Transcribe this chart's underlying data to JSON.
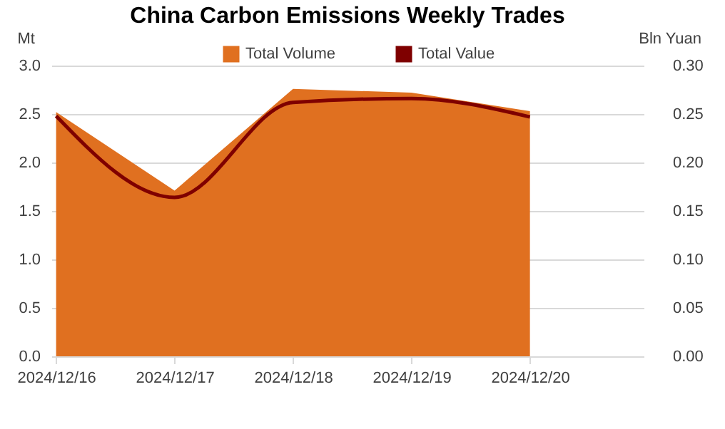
{
  "chart_data": {
    "type": "area",
    "title": "China Carbon Emissions Weekly Trades",
    "ylabel": "Mt",
    "y2label": "Bln Yuan",
    "categories": [
      "2024/12/16",
      "2024/12/17",
      "2024/12/18",
      "2024/12/19",
      "2024/12/20"
    ],
    "series": [
      {
        "name": "Total Volume",
        "color": "#e07020",
        "values": [
          2.52,
          1.71,
          2.76,
          2.72,
          2.53
        ]
      },
      {
        "name": "Total Value",
        "type": "line",
        "axis": "y2",
        "color": "#7f0000",
        "values": [
          0.248,
          0.164,
          0.262,
          0.266,
          0.247
        ]
      }
    ],
    "ylim": [
      0,
      3
    ],
    "yticks": [
      {
        "value": 0,
        "label": "0.0"
      },
      {
        "value": 0.5,
        "label": "0.5"
      },
      {
        "value": 1,
        "label": "1.0"
      },
      {
        "value": 1.5,
        "label": "1.5"
      },
      {
        "value": 2,
        "label": "2.0"
      },
      {
        "value": 2.5,
        "label": "2.5"
      },
      {
        "value": 3,
        "label": "3.0"
      }
    ],
    "y2lim": [
      0,
      0.3
    ],
    "y2ticks": [
      {
        "value": 0,
        "label": "0.00"
      },
      {
        "value": 0.05,
        "label": "0.05"
      },
      {
        "value": 0.1,
        "label": "0.10"
      },
      {
        "value": 0.15,
        "label": "0.15"
      },
      {
        "value": 0.2,
        "label": "0.20"
      },
      {
        "value": 0.25,
        "label": "0.25"
      },
      {
        "value": 0.3,
        "label": "0.30"
      }
    ],
    "grid": "y",
    "legend": "top"
  }
}
